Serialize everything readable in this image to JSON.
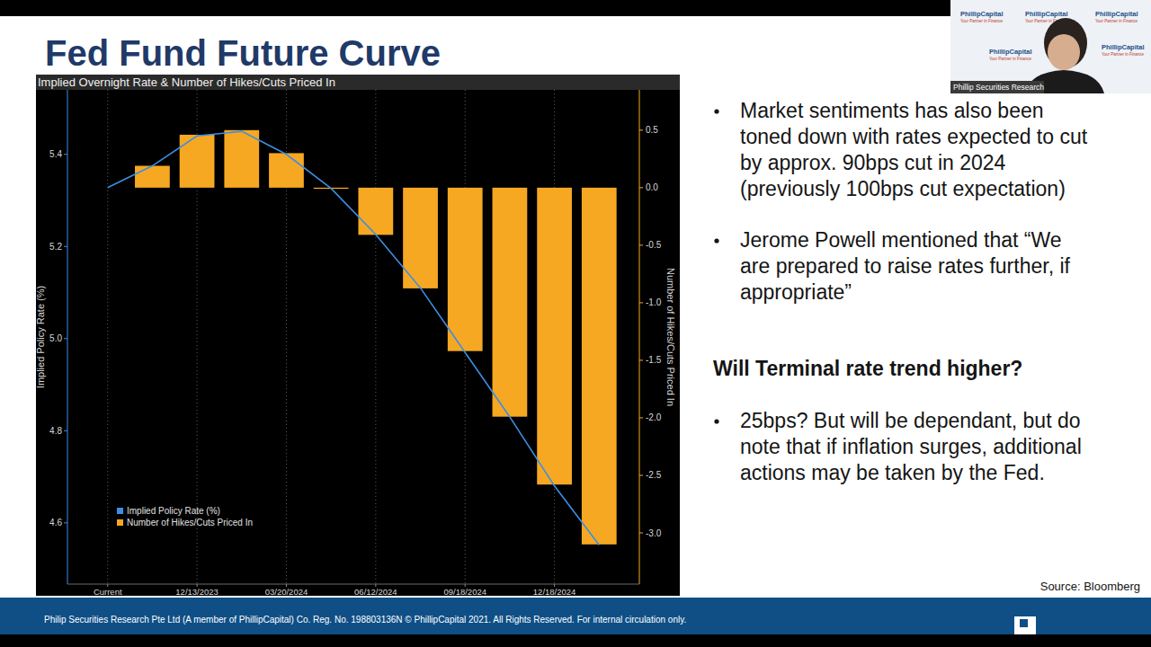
{
  "title": "Fed Fund Future Curve",
  "chart_data": {
    "type": "bar",
    "title": "Implied Overnight Rate & Number of Hikes/Cuts Priced In",
    "y_label": "Implied Policy Rate (%)",
    "y2_label": "Number of Hikes/Cuts Priced In",
    "categories": [
      "Current",
      null,
      "12/13/2023",
      null,
      "03/20/2024",
      null,
      "06/12/2024",
      null,
      "09/18/2024",
      null,
      "12/18/2024",
      null
    ],
    "series": [
      {
        "name": "Implied Policy Rate (%)",
        "type": "line",
        "color": "#3d8ee3",
        "axis": "y",
        "values": [
          5.328,
          5.375,
          5.44,
          5.45,
          5.4,
          5.326,
          5.226,
          5.11,
          4.97,
          4.83,
          4.68,
          4.552
        ]
      },
      {
        "name": "Number of Hikes/Cuts Priced In",
        "type": "bar",
        "color": "#f6a823",
        "axis": "y2",
        "values": [
          0,
          0.19,
          0.46,
          0.5,
          0.3,
          -0.01,
          -0.41,
          -0.875,
          -1.42,
          -1.99,
          -2.58,
          -3.1
        ]
      }
    ],
    "ylim": [
      4.467,
      5.54
    ],
    "yticks": [
      4.6,
      4.8,
      {
        "value": 5.0,
        "label": "5.0"
      },
      5.2,
      5.4
    ],
    "y2lim": [
      -3.445,
      0.85
    ],
    "y2ticks": [
      0.5,
      {
        "value": 0,
        "label": "0.0"
      },
      -0.5,
      {
        "value": -1,
        "label": "-1.0"
      },
      -1.5,
      {
        "value": -2,
        "label": "-2.0"
      },
      -2.5,
      {
        "value": -3,
        "label": "-3.0"
      }
    ],
    "grid": true,
    "legend": "lower left"
  },
  "bullets_top": [
    "Market sentiments has also been toned down with rates expected to cut by approx. 90bps cut in 2024 (previously 100bps cut expectation)",
    "Jerome Powell mentioned that “We are prepared to raise rates further, if appropriate”"
  ],
  "heading": "Will Terminal rate trend higher?",
  "bullets_bottom": [
    "25bps? But will be dependant, but do note that if inflation surges, additional actions may be taken by the Fed."
  ],
  "source": "Source: Bloomberg",
  "footer": "Philip Securities Research Pte Ltd (A member of PhillipCapital) Co. Reg. No. 198803136N © PhillipCapital 2021. All Rights Reserved. For internal circulation only.",
  "webcam_label": "Phillip Securities Research",
  "logo_name": "PhillipCapital",
  "logo_tagline": "Your Partner in Finance"
}
